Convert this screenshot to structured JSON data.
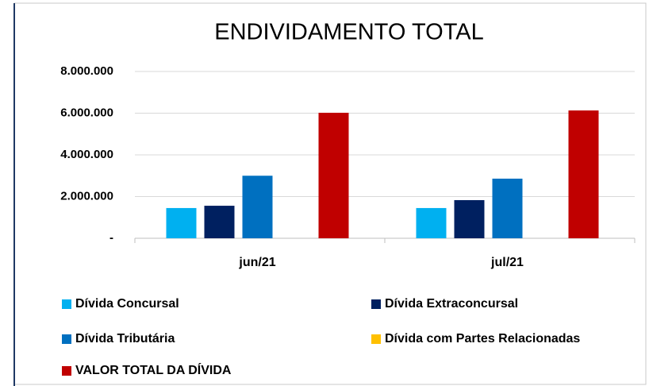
{
  "chart_data": {
    "type": "bar",
    "title": "ENDIVIDAMENTO TOTAL",
    "categories": [
      "jun/21",
      "jul/21"
    ],
    "series": [
      {
        "name": "Dívida Concursal",
        "color": "#00b0f0",
        "values": [
          1450000,
          1450000
        ]
      },
      {
        "name": "Dívida Extraconcursal",
        "color": "#002060",
        "values": [
          1560000,
          1830000
        ]
      },
      {
        "name": "Dívida Tributária",
        "color": "#0070c0",
        "values": [
          3000000,
          2860000
        ]
      },
      {
        "name": "Dívida com Partes Relacionadas",
        "color": "#ffc000",
        "values": [
          0,
          0
        ]
      },
      {
        "name": "VALOR TOTAL DA DÍVIDA",
        "color": "#c00000",
        "values": [
          6020000,
          6130000
        ]
      }
    ],
    "ylim": [
      0,
      8000000
    ],
    "yticks": [
      {
        "value": 0,
        "label": "-"
      },
      {
        "value": 2000000,
        "label": "2.000.000"
      },
      {
        "value": 4000000,
        "label": "4.000.000"
      },
      {
        "value": 6000000,
        "label": "6.000.000"
      },
      {
        "value": 8000000,
        "label": "8.000.000"
      }
    ],
    "grid": true
  }
}
